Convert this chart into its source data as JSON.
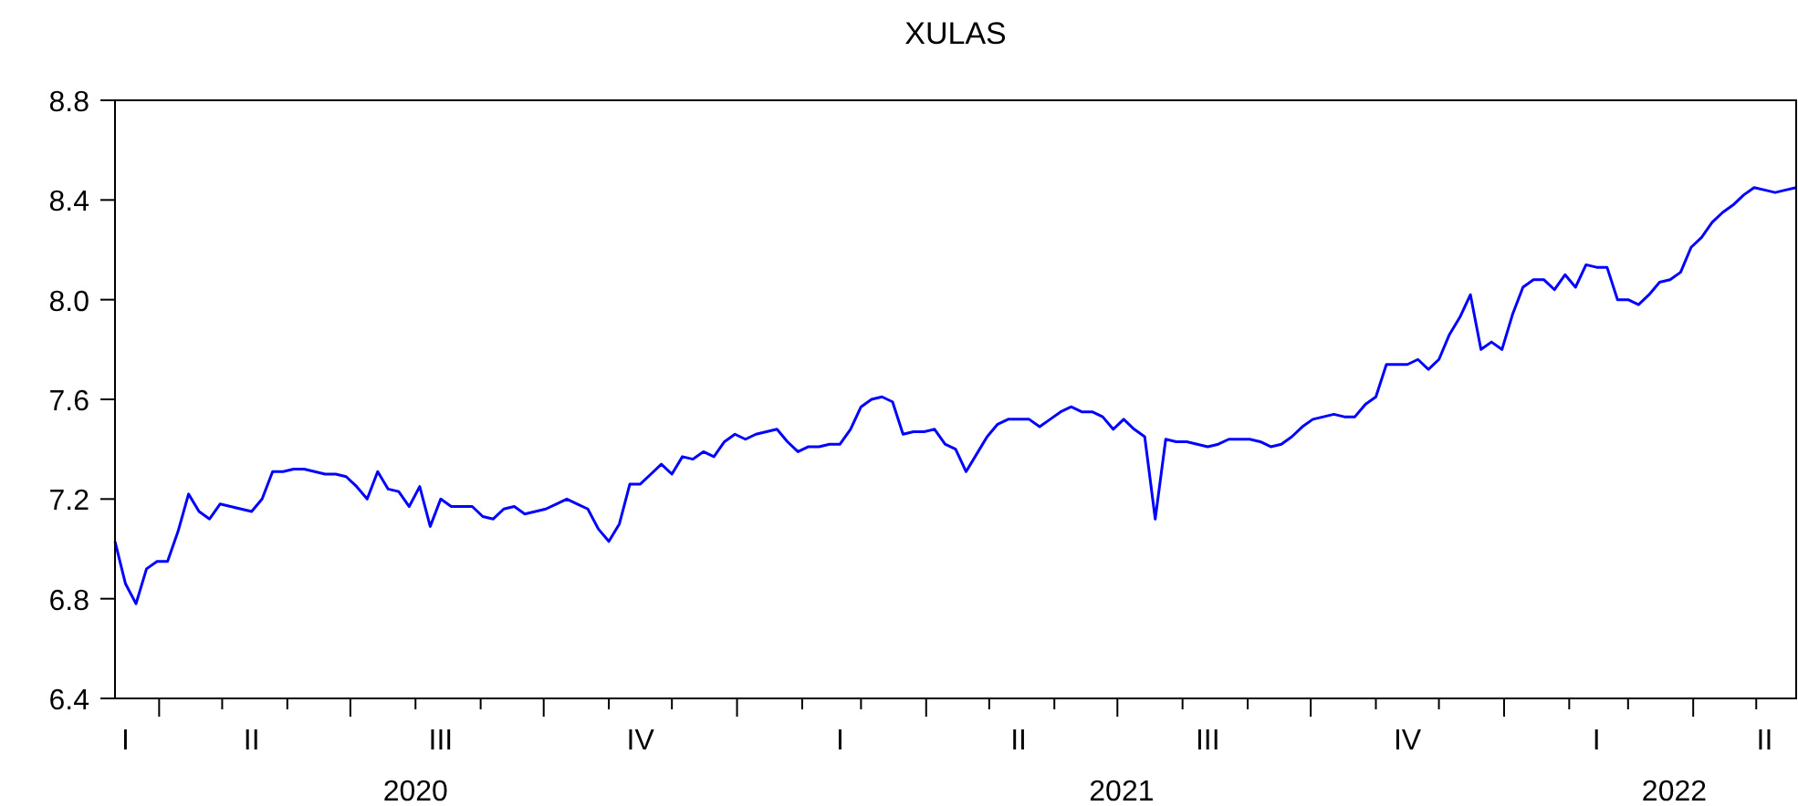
{
  "chart_data": {
    "type": "line",
    "title": "XULAS",
    "categories": [
      null,
      "I",
      null,
      null,
      null,
      null,
      null,
      null,
      null,
      null,
      null,
      null,
      null,
      "II",
      null,
      null,
      null,
      null,
      null,
      null,
      null,
      null,
      null,
      null,
      null,
      null,
      null,
      null,
      null,
      null,
      null,
      "III",
      null,
      null,
      null,
      null,
      null,
      null,
      null,
      null,
      null,
      null,
      null,
      null,
      null,
      null,
      null,
      null,
      null,
      null,
      "IV",
      null,
      null,
      null,
      null,
      null,
      null,
      null,
      null,
      null,
      null,
      null,
      null,
      null,
      null,
      null,
      null,
      null,
      null,
      "I",
      null,
      null,
      null,
      null,
      null,
      null,
      null,
      null,
      null,
      null,
      null,
      null,
      null,
      null,
      null,
      null,
      "II",
      null,
      null,
      null,
      null,
      null,
      null,
      null,
      null,
      null,
      null,
      null,
      null,
      null,
      null,
      null,
      null,
      null,
      "III",
      null,
      null,
      null,
      null,
      null,
      null,
      null,
      null,
      null,
      null,
      null,
      null,
      null,
      null,
      null,
      null,
      null,
      null,
      "IV",
      null,
      null,
      null,
      null,
      null,
      null,
      null,
      null,
      null,
      null,
      null,
      null,
      null,
      null,
      null,
      null,
      null,
      "I",
      null,
      null,
      null,
      null,
      null,
      null,
      null,
      null,
      null,
      null,
      null,
      null,
      null,
      null,
      null,
      "II",
      null,
      null,
      null
    ],
    "series": [
      {
        "color": "#0000ff",
        "values": [
          7.03,
          6.86,
          6.78,
          6.92,
          6.95,
          6.95,
          7.07,
          7.22,
          7.15,
          7.12,
          7.18,
          7.17,
          7.16,
          7.15,
          7.2,
          7.31,
          7.31,
          7.32,
          7.32,
          7.31,
          7.3,
          7.3,
          7.29,
          7.25,
          7.2,
          7.31,
          7.24,
          7.23,
          7.17,
          7.25,
          7.09,
          7.2,
          7.17,
          7.17,
          7.17,
          7.13,
          7.12,
          7.16,
          7.17,
          7.14,
          7.15,
          7.16,
          7.18,
          7.2,
          7.18,
          7.16,
          7.08,
          7.03,
          7.1,
          7.26,
          7.26,
          7.3,
          7.34,
          7.3,
          7.37,
          7.36,
          7.39,
          7.37,
          7.43,
          7.46,
          7.44,
          7.46,
          7.47,
          7.48,
          7.43,
          7.39,
          7.41,
          7.41,
          7.42,
          7.42,
          7.48,
          7.57,
          7.6,
          7.61,
          7.59,
          7.46,
          7.47,
          7.47,
          7.48,
          7.42,
          7.4,
          7.31,
          7.38,
          7.45,
          7.5,
          7.52,
          7.52,
          7.52,
          7.49,
          7.52,
          7.55,
          7.57,
          7.55,
          7.55,
          7.53,
          7.48,
          7.52,
          7.48,
          7.45,
          7.12,
          7.44,
          7.43,
          7.43,
          7.42,
          7.41,
          7.42,
          7.44,
          7.44,
          7.44,
          7.43,
          7.41,
          7.42,
          7.45,
          7.49,
          7.52,
          7.53,
          7.54,
          7.53,
          7.53,
          7.58,
          7.61,
          7.74,
          7.74,
          7.74,
          7.76,
          7.72,
          7.76,
          7.86,
          7.93,
          8.02,
          7.8,
          7.83,
          7.8,
          7.94,
          8.05,
          8.08,
          8.08,
          8.04,
          8.1,
          8.05,
          8.14,
          8.13,
          8.13,
          8.0,
          8.0,
          7.98,
          8.02,
          8.07,
          8.08,
          8.11,
          8.21,
          8.25,
          8.31,
          8.35,
          8.38,
          8.42,
          8.45,
          8.44,
          8.43,
          8.44,
          8.45
        ]
      }
    ],
    "x2lim": [
      "2020-03-11",
      "2022-05-20"
    ],
    "x2ticks": [
      {
        "value": "2020-04-01",
        "label": null
      },
      {
        "value": "2020-05-01",
        "label": null
      },
      {
        "value": "2020-06-01",
        "label": null
      },
      {
        "value": "2020-07-01",
        "label": null
      },
      {
        "value": "2020-08-01",
        "label": null
      },
      {
        "value": "2020-09-01",
        "label": null
      },
      {
        "value": "2020-10-01",
        "label": null
      },
      {
        "value": "2020-11-01",
        "label": null
      },
      {
        "value": "2020-12-01",
        "label": null
      },
      {
        "value": "2021-01-01",
        "label": null
      },
      {
        "value": "2021-02-01",
        "label": null
      },
      {
        "value": "2021-03-01",
        "label": null
      },
      {
        "value": "2021-04-01",
        "label": null
      },
      {
        "value": "2021-05-01",
        "label": null
      },
      {
        "value": "2021-06-01",
        "label": null
      },
      {
        "value": "2021-07-01",
        "label": null
      },
      {
        "value": "2021-08-01",
        "label": null
      },
      {
        "value": "2021-09-01",
        "label": null
      },
      {
        "value": "2021-10-01",
        "label": null
      },
      {
        "value": "2021-11-01",
        "label": null
      },
      {
        "value": "2021-12-01",
        "label": null
      },
      {
        "value": "2022-01-01",
        "label": null
      },
      {
        "value": "2022-02-01",
        "label": null
      },
      {
        "value": "2022-03-01",
        "label": null
      },
      {
        "value": "2022-04-01",
        "label": null
      },
      {
        "value": "2022-05-01",
        "label": null
      },
      {
        "value": "2020-08-01",
        "label": "2020"
      },
      {
        "value": "2021-07-03",
        "label": "2021"
      },
      {
        "value": "2022-03-23",
        "label": "2022"
      }
    ],
    "ylim": [
      6.4,
      8.8
    ],
    "yticks": [
      6.4,
      6.8,
      7.2,
      7.6,
      {
        "value": 8,
        "label": "8.0"
      },
      8.4,
      8.8
    ],
    "grid": false,
    "marker": "none",
    "line_style": "solid"
  }
}
